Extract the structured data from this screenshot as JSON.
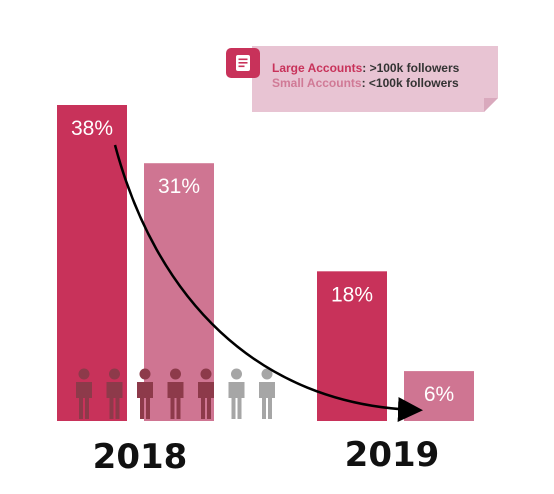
{
  "colors": {
    "large": "#c8325a",
    "small": "#cf7592",
    "note_bg": "#e8c4d3",
    "note_icon": "#c8325a",
    "person_dark": "#8d3a4a",
    "person_light": "#a6a6a6",
    "arrow": "#000000"
  },
  "legend": {
    "large_label": "Large Accounts",
    "large_desc": ": >100k followers",
    "small_label": "Small Accounts",
    "small_desc": ": <100k followers",
    "icon": "note-icon"
  },
  "icons": {
    "person": "person-icon",
    "count_dark": 5,
    "count_light": 2
  },
  "chart_data": {
    "type": "bar",
    "categories": [
      "2018",
      "2019"
    ],
    "series": [
      {
        "name": "Large Accounts",
        "values": [
          38,
          18
        ]
      },
      {
        "name": "Small Accounts",
        "values": [
          31,
          6
        ]
      }
    ],
    "value_labels": [
      [
        "38%",
        "31%"
      ],
      [
        "18%",
        "6%"
      ]
    ],
    "unit": "%",
    "ylim": [
      0,
      38
    ],
    "grid": false,
    "legend_position": "top-right",
    "annotation": "curved arrow from 38% (2018 Large) to 6% (2019 Small)"
  }
}
